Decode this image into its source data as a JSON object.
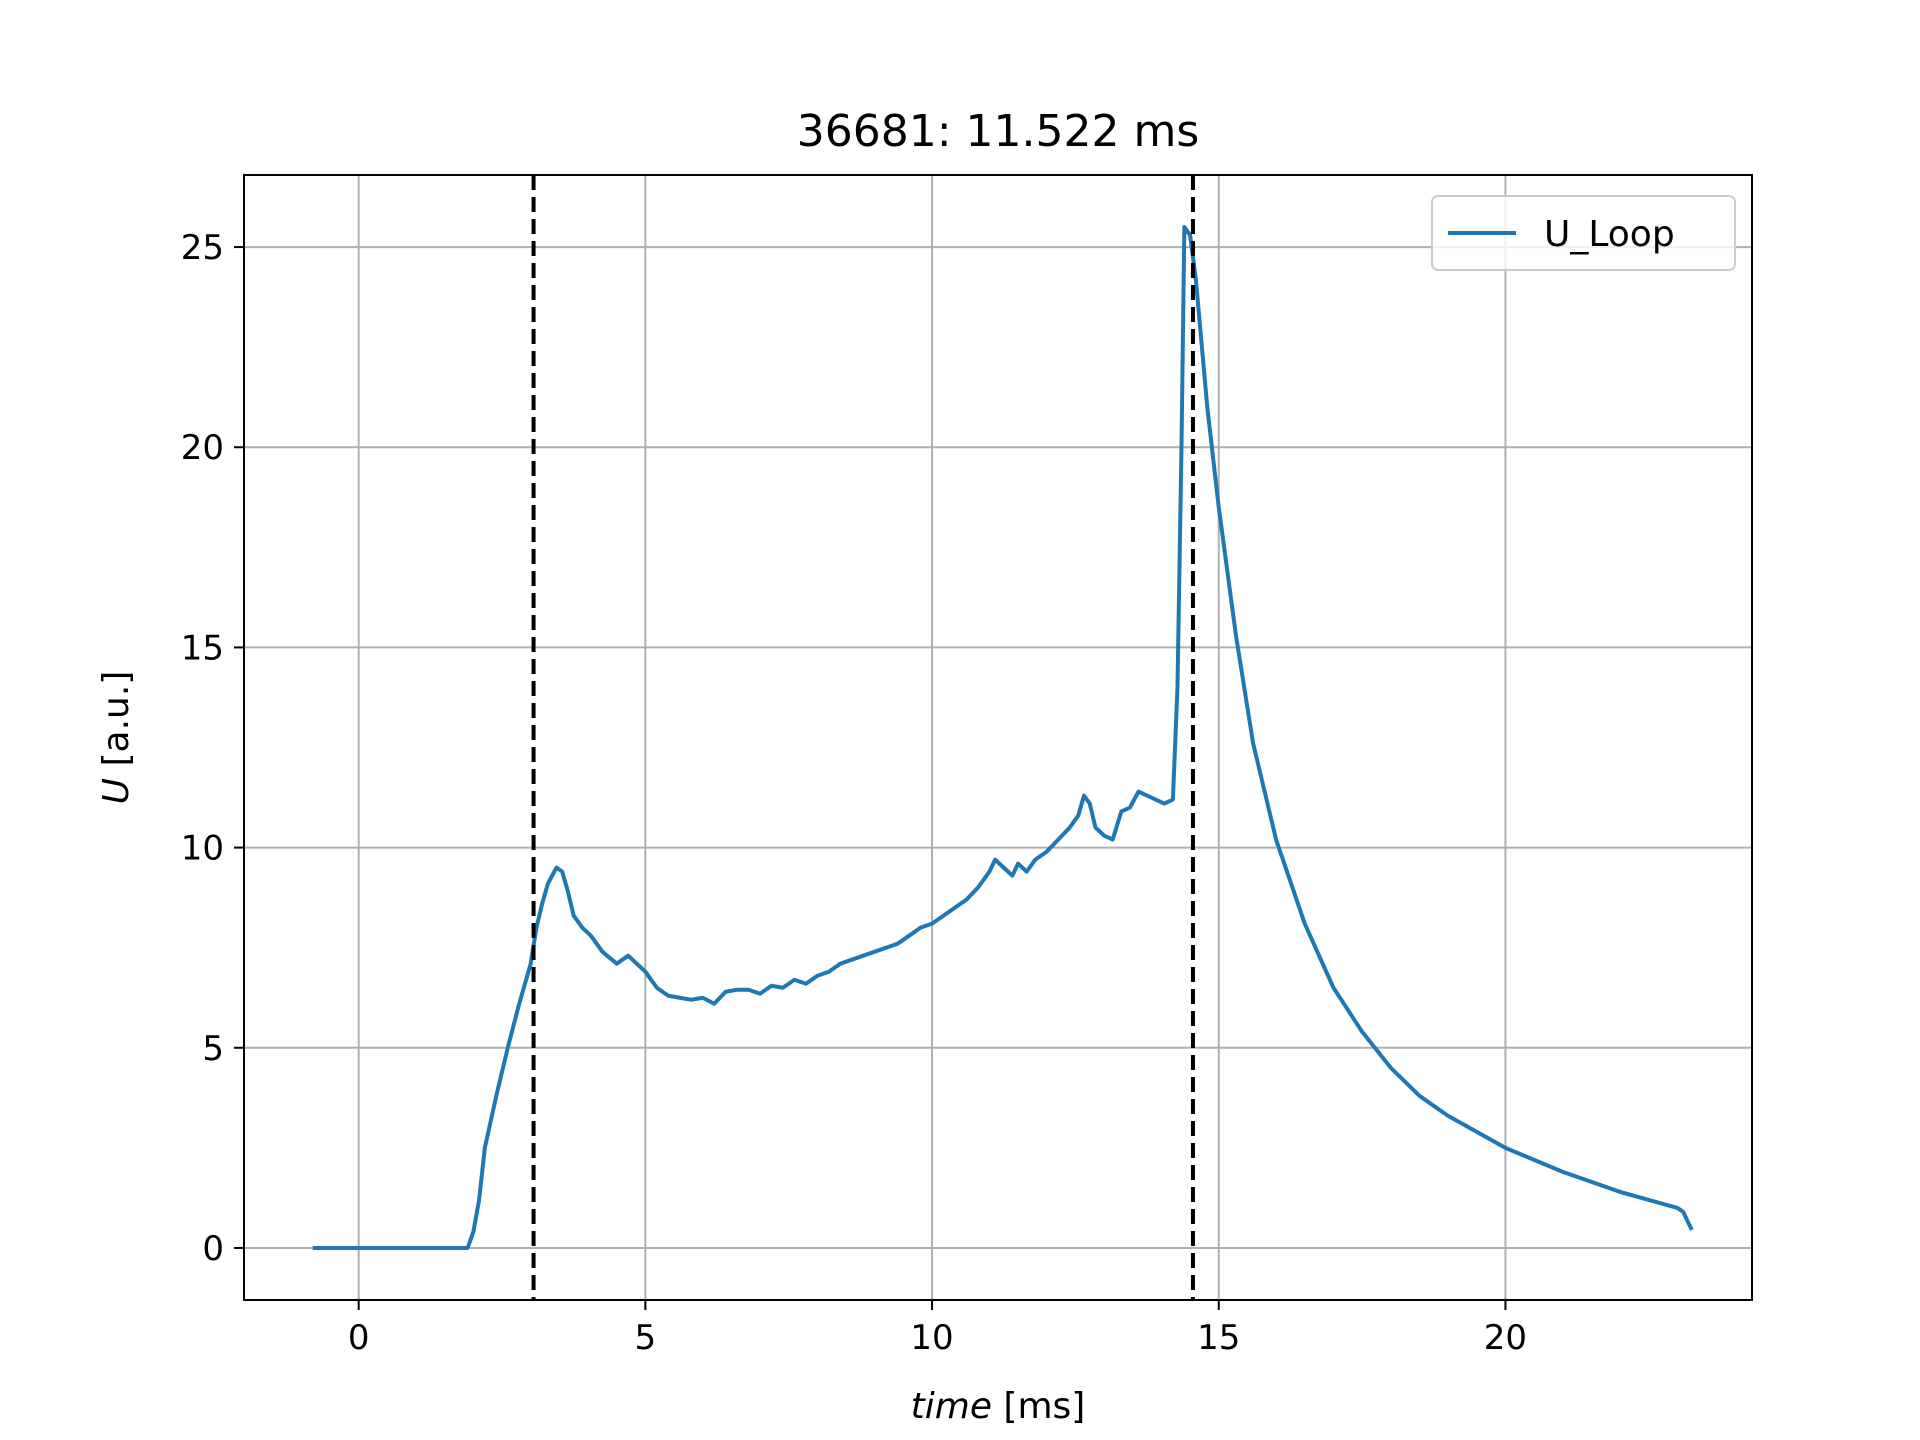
{
  "chart_data": {
    "type": "line",
    "title": "36681: 11.522 ms",
    "xlabel_italic": "time",
    "xlabel_unit": " [ms]",
    "ylabel_italic": "U",
    "ylabel_unit": " [a.u.]",
    "xlim": [
      -2.0,
      24.3
    ],
    "ylim": [
      -1.3,
      26.8
    ],
    "xticks": [
      0,
      5,
      10,
      15,
      20
    ],
    "yticks": [
      0,
      5,
      10,
      15,
      20,
      25
    ],
    "grid": true,
    "legend_position": "top-right",
    "series": [
      {
        "name": "U_Loop",
        "color": "#1f77b4",
        "points": [
          [
            -0.8,
            0.0
          ],
          [
            0.0,
            0.0
          ],
          [
            0.5,
            0.0
          ],
          [
            1.0,
            0.0
          ],
          [
            1.5,
            0.0
          ],
          [
            1.9,
            0.0
          ],
          [
            2.0,
            0.4
          ],
          [
            2.1,
            1.2
          ],
          [
            2.2,
            2.5
          ],
          [
            2.4,
            3.8
          ],
          [
            2.6,
            5.0
          ],
          [
            2.8,
            6.1
          ],
          [
            3.0,
            7.1
          ],
          [
            3.1,
            8.0
          ],
          [
            3.2,
            8.6
          ],
          [
            3.3,
            9.1
          ],
          [
            3.45,
            9.5
          ],
          [
            3.55,
            9.4
          ],
          [
            3.65,
            8.9
          ],
          [
            3.75,
            8.3
          ],
          [
            3.9,
            8.0
          ],
          [
            4.05,
            7.8
          ],
          [
            4.25,
            7.4
          ],
          [
            4.5,
            7.1
          ],
          [
            4.7,
            7.3
          ],
          [
            4.85,
            7.1
          ],
          [
            5.0,
            6.9
          ],
          [
            5.2,
            6.5
          ],
          [
            5.4,
            6.3
          ],
          [
            5.6,
            6.25
          ],
          [
            5.8,
            6.2
          ],
          [
            6.0,
            6.25
          ],
          [
            6.2,
            6.1
          ],
          [
            6.4,
            6.4
          ],
          [
            6.6,
            6.45
          ],
          [
            6.8,
            6.45
          ],
          [
            7.0,
            6.35
          ],
          [
            7.2,
            6.55
          ],
          [
            7.4,
            6.5
          ],
          [
            7.6,
            6.7
          ],
          [
            7.8,
            6.6
          ],
          [
            8.0,
            6.8
          ],
          [
            8.2,
            6.9
          ],
          [
            8.4,
            7.1
          ],
          [
            8.6,
            7.2
          ],
          [
            8.8,
            7.3
          ],
          [
            9.0,
            7.4
          ],
          [
            9.2,
            7.5
          ],
          [
            9.4,
            7.6
          ],
          [
            9.6,
            7.8
          ],
          [
            9.8,
            8.0
          ],
          [
            10.0,
            8.1
          ],
          [
            10.2,
            8.3
          ],
          [
            10.4,
            8.5
          ],
          [
            10.6,
            8.7
          ],
          [
            10.8,
            9.0
          ],
          [
            11.0,
            9.4
          ],
          [
            11.1,
            9.7
          ],
          [
            11.25,
            9.5
          ],
          [
            11.4,
            9.3
          ],
          [
            11.5,
            9.6
          ],
          [
            11.65,
            9.4
          ],
          [
            11.8,
            9.7
          ],
          [
            12.0,
            9.9
          ],
          [
            12.2,
            10.2
          ],
          [
            12.4,
            10.5
          ],
          [
            12.55,
            10.8
          ],
          [
            12.65,
            11.3
          ],
          [
            12.75,
            11.1
          ],
          [
            12.85,
            10.5
          ],
          [
            13.0,
            10.3
          ],
          [
            13.15,
            10.2
          ],
          [
            13.3,
            10.9
          ],
          [
            13.45,
            11.0
          ],
          [
            13.6,
            11.4
          ],
          [
            13.75,
            11.3
          ],
          [
            13.9,
            11.2
          ],
          [
            14.05,
            11.1
          ],
          [
            14.2,
            11.2
          ],
          [
            14.28,
            14.0
          ],
          [
            14.35,
            20.0
          ],
          [
            14.4,
            25.5
          ],
          [
            14.5,
            25.3
          ],
          [
            14.6,
            24.2
          ],
          [
            14.8,
            21.0
          ],
          [
            15.0,
            18.5
          ],
          [
            15.3,
            15.3
          ],
          [
            15.6,
            12.6
          ],
          [
            16.0,
            10.2
          ],
          [
            16.5,
            8.1
          ],
          [
            17.0,
            6.5
          ],
          [
            17.5,
            5.4
          ],
          [
            18.0,
            4.5
          ],
          [
            18.5,
            3.8
          ],
          [
            19.0,
            3.3
          ],
          [
            19.5,
            2.9
          ],
          [
            20.0,
            2.5
          ],
          [
            20.5,
            2.2
          ],
          [
            21.0,
            1.9
          ],
          [
            21.5,
            1.65
          ],
          [
            22.0,
            1.4
          ],
          [
            22.5,
            1.2
          ],
          [
            23.0,
            1.0
          ],
          [
            23.1,
            0.9
          ],
          [
            23.25,
            0.45
          ]
        ]
      }
    ],
    "vlines": [
      {
        "x": 3.05,
        "style": "dashed",
        "color": "#000000"
      },
      {
        "x": 14.55,
        "style": "dashed",
        "color": "#000000"
      }
    ]
  }
}
